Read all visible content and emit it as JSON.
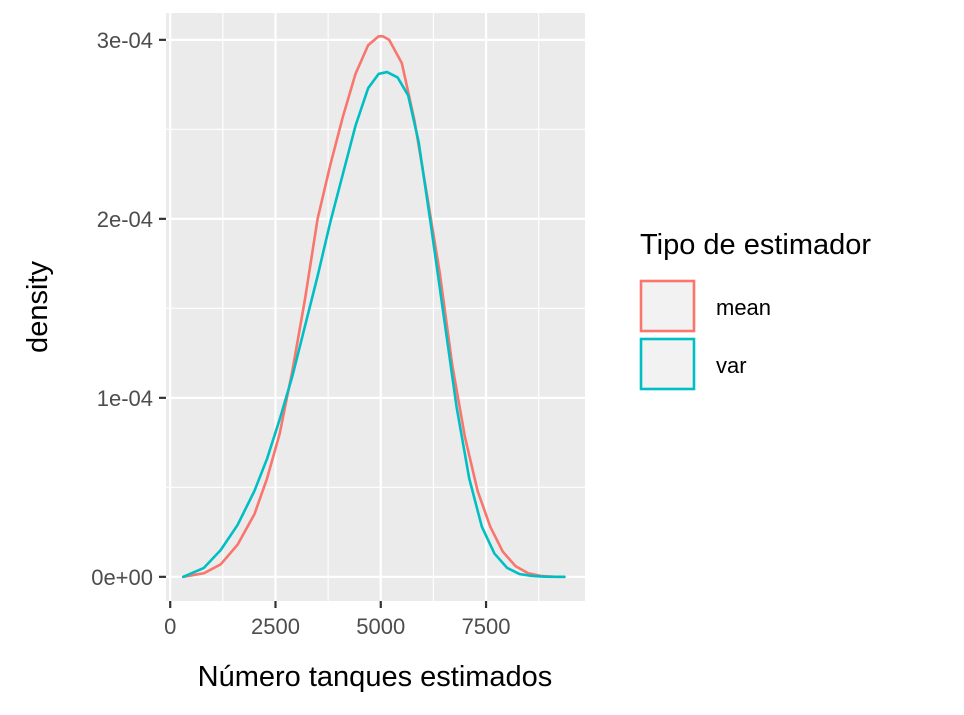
{
  "chart_data": {
    "type": "line",
    "title": "",
    "xlabel": "Número tanques estimados",
    "ylabel": "density",
    "xlim": [
      -100,
      9850
    ],
    "ylim": [
      -1.35e-05,
      0.000315
    ],
    "x_ticks": [
      0,
      2500,
      5000,
      7500
    ],
    "x_tick_labels": [
      "0",
      "2500",
      "5000",
      "7500"
    ],
    "y_ticks": [
      0,
      0.0001,
      0.0002,
      0.0003
    ],
    "y_tick_labels": [
      "0e+00",
      "1e-04",
      "2e-04",
      "3e-04"
    ],
    "grid": true,
    "legend": {
      "title": "Tipo de estimador",
      "position": "right"
    },
    "series": [
      {
        "name": "mean",
        "color": "#F8766D",
        "x": [
          310,
          800,
          1200,
          1600,
          2000,
          2300,
          2600,
          2900,
          3200,
          3500,
          3800,
          4100,
          4400,
          4700,
          4950,
          5050,
          5200,
          5500,
          5800,
          6100,
          6400,
          6700,
          7000,
          7300,
          7600,
          7900,
          8200,
          8500,
          8800,
          9100,
          9360
        ],
        "y": [
          0,
          2e-06,
          7e-06,
          1.8e-05,
          3.5e-05,
          5.5e-05,
          8e-05,
          0.000115,
          0.000155,
          0.0002,
          0.00023,
          0.000257,
          0.000281,
          0.000297,
          0.000302,
          0.000302,
          0.0003,
          0.000287,
          0.000255,
          0.000213,
          0.00017,
          0.000118,
          7.8e-05,
          4.8e-05,
          2.8e-05,
          1.4e-05,
          6e-06,
          2e-06,
          5e-07,
          1e-07,
          0
        ]
      },
      {
        "name": "var",
        "color": "#00BFC4",
        "x": [
          310,
          800,
          1200,
          1600,
          2000,
          2300,
          2600,
          2900,
          3200,
          3500,
          3800,
          4100,
          4400,
          4700,
          4950,
          5150,
          5400,
          5650,
          5900,
          6200,
          6500,
          6800,
          7100,
          7400,
          7700,
          8000,
          8300,
          8600,
          8900,
          9200,
          9360
        ],
        "y": [
          0,
          5e-06,
          1.5e-05,
          2.9e-05,
          4.8e-05,
          6.6e-05,
          8.8e-05,
          0.000112,
          0.00014,
          0.000168,
          0.000198,
          0.000225,
          0.000252,
          0.000273,
          0.000281,
          0.000282,
          0.000279,
          0.000269,
          0.000243,
          0.000195,
          0.000145,
          9.5e-05,
          5.5e-05,
          2.8e-05,
          1.3e-05,
          5e-06,
          1.5e-06,
          5e-07,
          1e-07,
          0,
          0
        ]
      }
    ]
  }
}
